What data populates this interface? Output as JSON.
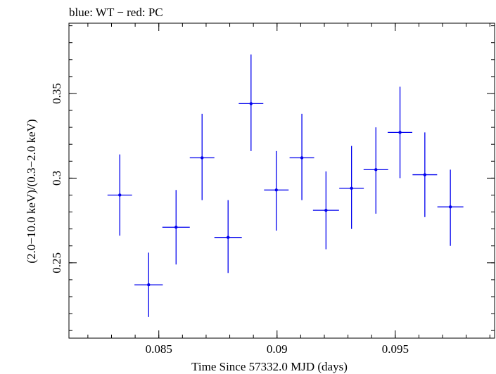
{
  "chart_data": {
    "type": "scatter",
    "title": "blue: WT − red: PC",
    "xlabel": "Time Since 57332.0 MJD (days)",
    "ylabel": "(2.0−10.0 keV)/(0.3−2.0 keV)",
    "xlim": [
      0.0812,
      0.0992
    ],
    "ylim": [
      0.2055,
      0.3915
    ],
    "x_ticks": [
      {
        "value": 0.085,
        "label": "0.085"
      },
      {
        "value": 0.09,
        "label": "0.09"
      },
      {
        "value": 0.095,
        "label": "0.095"
      }
    ],
    "y_ticks": [
      {
        "value": 0.25,
        "label": "0.25"
      },
      {
        "value": 0.3,
        "label": "0.3"
      },
      {
        "value": 0.35,
        "label": "0.35"
      }
    ],
    "grid": false,
    "colors": {
      "WT": "#0000ee",
      "PC": "#ee0000"
    },
    "series": [
      {
        "name": "WT",
        "color": "#0000ee",
        "points": [
          {
            "x": 0.08335,
            "xerr": 0.00052,
            "y": 0.29,
            "ylo": 0.266,
            "yhi": 0.314
          },
          {
            "x": 0.08457,
            "xerr": 0.0006,
            "y": 0.237,
            "ylo": 0.218,
            "yhi": 0.256
          },
          {
            "x": 0.08573,
            "xerr": 0.00058,
            "y": 0.271,
            "ylo": 0.249,
            "yhi": 0.293
          },
          {
            "x": 0.08683,
            "xerr": 0.00052,
            "y": 0.312,
            "ylo": 0.287,
            "yhi": 0.338
          },
          {
            "x": 0.08793,
            "xerr": 0.00058,
            "y": 0.265,
            "ylo": 0.244,
            "yhi": 0.287
          },
          {
            "x": 0.0889,
            "xerr": 0.00052,
            "y": 0.344,
            "ylo": 0.316,
            "yhi": 0.373
          },
          {
            "x": 0.08997,
            "xerr": 0.00052,
            "y": 0.293,
            "ylo": 0.269,
            "yhi": 0.316
          },
          {
            "x": 0.09105,
            "xerr": 0.00052,
            "y": 0.312,
            "ylo": 0.287,
            "yhi": 0.338
          },
          {
            "x": 0.09207,
            "xerr": 0.00055,
            "y": 0.281,
            "ylo": 0.258,
            "yhi": 0.304
          },
          {
            "x": 0.09315,
            "xerr": 0.00052,
            "y": 0.294,
            "ylo": 0.27,
            "yhi": 0.319
          },
          {
            "x": 0.09418,
            "xerr": 0.00052,
            "y": 0.305,
            "ylo": 0.279,
            "yhi": 0.33
          },
          {
            "x": 0.0952,
            "xerr": 0.00052,
            "y": 0.327,
            "ylo": 0.3,
            "yhi": 0.354
          },
          {
            "x": 0.09625,
            "xerr": 0.00052,
            "y": 0.302,
            "ylo": 0.277,
            "yhi": 0.327
          },
          {
            "x": 0.09733,
            "xerr": 0.00055,
            "y": 0.283,
            "ylo": 0.26,
            "yhi": 0.305
          }
        ]
      }
    ]
  }
}
